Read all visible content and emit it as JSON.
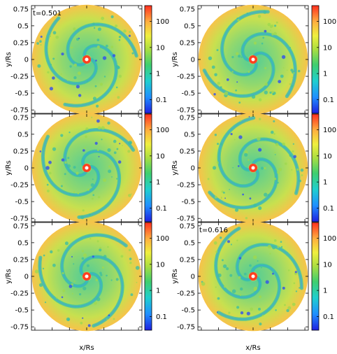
{
  "chart_data": [
    {
      "type": "heatmap",
      "panel": "top-left",
      "annotation": "t=0.501",
      "ylabel": "y/Rs",
      "xlabel": "",
      "yticks": [
        "0.75",
        "0.5",
        "0.25",
        "0",
        "-0.25",
        "-0.5",
        "-0.75"
      ],
      "ylim": [
        -0.8,
        0.8
      ],
      "xlim": [
        -0.8,
        0.8
      ],
      "colorbar": {
        "scale": "log",
        "range": [
          0.03,
          400
        ],
        "ticks": [
          "100",
          "10",
          "1",
          "0.1"
        ]
      }
    },
    {
      "type": "heatmap",
      "panel": "top-right",
      "annotation": "",
      "ylabel": "y/Rs",
      "xlabel": "",
      "yticks": [
        "0.75",
        "0.5",
        "0.25",
        "0",
        "-0.25",
        "-0.5",
        "-0.75"
      ],
      "ylim": [
        -0.8,
        0.8
      ],
      "xlim": [
        -0.8,
        0.8
      ],
      "colorbar": {
        "scale": "log",
        "range": [
          0.03,
          400
        ],
        "ticks": [
          "100",
          "10",
          "1",
          "0.1"
        ]
      }
    },
    {
      "type": "heatmap",
      "panel": "middle-left",
      "annotation": "",
      "ylabel": "y/Rs",
      "xlabel": "",
      "yticks": [
        "0.75",
        "0.5",
        "0.25",
        "0",
        "-0.25",
        "-0.5",
        "-0.75"
      ],
      "ylim": [
        -0.8,
        0.8
      ],
      "xlim": [
        -0.8,
        0.8
      ],
      "colorbar": {
        "scale": "log",
        "range": [
          0.03,
          400
        ],
        "ticks": [
          "100",
          "10",
          "1",
          "0.1"
        ]
      }
    },
    {
      "type": "heatmap",
      "panel": "middle-right",
      "annotation": "",
      "ylabel": "y/Rs",
      "xlabel": "",
      "yticks": [
        "0.75",
        "0.5",
        "0.25",
        "0",
        "-0.25",
        "-0.5",
        "-0.75"
      ],
      "ylim": [
        -0.8,
        0.8
      ],
      "xlim": [
        -0.8,
        0.8
      ],
      "colorbar": {
        "scale": "log",
        "range": [
          0.03,
          400
        ],
        "ticks": [
          "100",
          "10",
          "1",
          "0.1"
        ]
      }
    },
    {
      "type": "heatmap",
      "panel": "bottom-left",
      "annotation": "",
      "ylabel": "y/Rs",
      "xlabel": "x/Rs",
      "yticks": [
        "0.75",
        "0.5",
        "0.25",
        "0",
        "-0.25",
        "-0.5",
        "-0.75"
      ],
      "ylim": [
        -0.8,
        0.8
      ],
      "xlim": [
        -0.8,
        0.8
      ],
      "colorbar": {
        "scale": "log",
        "range": [
          0.03,
          400
        ],
        "ticks": [
          "100",
          "10",
          "1",
          "0.1"
        ]
      }
    },
    {
      "type": "heatmap",
      "panel": "bottom-right",
      "annotation": "t=0.616",
      "ylabel": "y/Rs",
      "xlabel": "x/Rs",
      "yticks": [
        "0.75",
        "0.5",
        "0.25",
        "0",
        "-0.25",
        "-0.5",
        "-0.75"
      ],
      "ylim": [
        -0.8,
        0.8
      ],
      "xlim": [
        -0.8,
        0.8
      ],
      "colorbar": {
        "scale": "log",
        "range": [
          0.03,
          400
        ],
        "ticks": [
          "100",
          "10",
          "1",
          "0.1"
        ]
      }
    }
  ]
}
